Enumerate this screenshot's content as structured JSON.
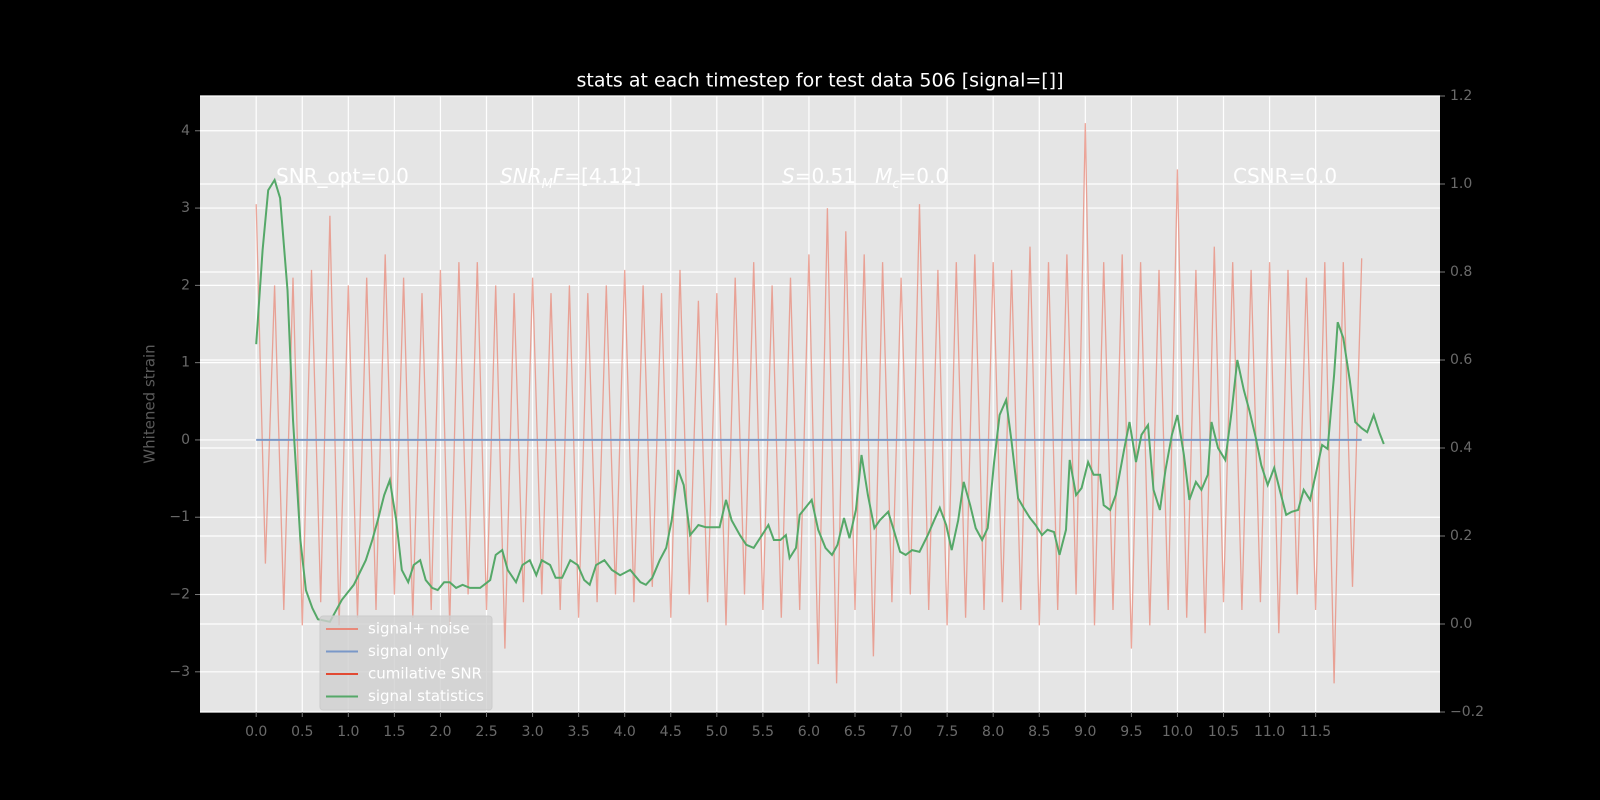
{
  "chart_data": {
    "type": "line",
    "title": "stats at each timestep for test data 506 [signal=[]]",
    "ylabel": "Whitened strain",
    "xlim": [
      -0.61,
      12.85
    ],
    "ylim": [
      -3.52,
      4.45
    ],
    "y2lim": [
      -0.2,
      1.2
    ],
    "xticks": [
      {
        "value": 0.0,
        "label": "0.0"
      },
      0.5,
      {
        "value": 1.0,
        "label": "1.0"
      },
      1.5,
      {
        "value": 2.0,
        "label": "2.0"
      },
      2.5,
      {
        "value": 3.0,
        "label": "3.0"
      },
      3.5,
      {
        "value": 4.0,
        "label": "4.0"
      },
      4.5,
      {
        "value": 5.0,
        "label": "5.0"
      },
      5.5,
      {
        "value": 6.0,
        "label": "6.0"
      },
      6.5,
      {
        "value": 7.0,
        "label": "7.0"
      },
      7.5,
      {
        "value": 8.0,
        "label": "8.0"
      },
      8.5,
      {
        "value": 9.0,
        "label": "9.0"
      },
      9.5,
      {
        "value": 10.0,
        "label": "10.0"
      },
      10.5,
      {
        "value": 11.0,
        "label": "11.0"
      },
      11.5
    ],
    "yticks": [
      {
        "value": -3,
        "label": "−3"
      },
      {
        "value": -2,
        "label": "−2"
      },
      {
        "value": -1,
        "label": "−1"
      },
      0,
      1,
      2,
      3,
      4
    ],
    "y2ticks": [
      {
        "value": -0.2,
        "label": "−0.2"
      },
      {
        "value": 0.0,
        "label": "0.0"
      },
      0.2,
      0.4,
      0.6,
      0.8,
      {
        "value": 1.0,
        "label": "1.0"
      },
      1.2
    ],
    "grid": true,
    "legend_loc": "lower left",
    "annotations": [
      [
        {
          "text": "SNR_opt=0.0"
        }
      ],
      [
        {
          "text": "SNR",
          "italic": true
        },
        {
          "text": "M",
          "italic": true,
          "sub": true
        },
        {
          "text": "F",
          "italic": true
        },
        {
          "text": "=[4.12]"
        }
      ],
      [
        {
          "text": "S",
          "italic": true
        },
        {
          "text": "=0.51   "
        },
        {
          "text": "M",
          "italic": true
        },
        {
          "text": "c",
          "italic": true,
          "sub": true
        },
        {
          "text": "=0.0"
        }
      ],
      [
        {
          "text": "CSNR=0.0"
        }
      ]
    ],
    "series": [
      {
        "name": "signal+ noise",
        "color": "#e8897a",
        "alpha": 0.75,
        "x": [
          0.0,
          0.1,
          0.2,
          0.3,
          0.4,
          0.5,
          0.6,
          0.7,
          0.8,
          0.9,
          1.0,
          1.1,
          1.2,
          1.3,
          1.4,
          1.5,
          1.6,
          1.7,
          1.8,
          1.9,
          2.0,
          2.1,
          2.2,
          2.3,
          2.4,
          2.5,
          2.6,
          2.7,
          2.8,
          2.9,
          3.0,
          3.1,
          3.2,
          3.3,
          3.4,
          3.5,
          3.6,
          3.7,
          3.8,
          3.9,
          4.0,
          4.1,
          4.2,
          4.3,
          4.4,
          4.5,
          4.6,
          4.7,
          4.8,
          4.9,
          5.0,
          5.1,
          5.2,
          5.3,
          5.4,
          5.5,
          5.6,
          5.7,
          5.8,
          5.9,
          6.0,
          6.1,
          6.2,
          6.3,
          6.4,
          6.5,
          6.6,
          6.7,
          6.8,
          6.9,
          7.0,
          7.1,
          7.2,
          7.3,
          7.4,
          7.5,
          7.6,
          7.7,
          7.8,
          7.9,
          8.0,
          8.1,
          8.2,
          8.3,
          8.4,
          8.5,
          8.6,
          8.7,
          8.8,
          8.9,
          9.0,
          9.1,
          9.2,
          9.3,
          9.4,
          9.5,
          9.6,
          9.7,
          9.8,
          9.9,
          10.0,
          10.1,
          10.2,
          10.3,
          10.4,
          10.5,
          10.6,
          10.7,
          10.8,
          10.9,
          11.0,
          11.1,
          11.2,
          11.3,
          11.4,
          11.5,
          11.6,
          11.7,
          11.8,
          11.9,
          12.0
        ],
        "values": [
          3.05,
          -1.6,
          2.0,
          -2.2,
          2.1,
          -2.4,
          2.2,
          -2.1,
          2.9,
          -2.4,
          2.0,
          -2.3,
          2.1,
          -2.2,
          2.4,
          -2.0,
          2.1,
          -2.3,
          1.9,
          -2.2,
          2.2,
          -2.4,
          2.3,
          -2.0,
          2.3,
          -2.2,
          2.0,
          -2.7,
          1.9,
          -2.1,
          2.1,
          -2.0,
          1.9,
          -2.2,
          2.0,
          -2.3,
          1.9,
          -2.1,
          2.0,
          -2.0,
          2.2,
          -2.1,
          2.0,
          -1.9,
          1.9,
          -2.3,
          2.2,
          -2.0,
          1.8,
          -2.1,
          1.9,
          -2.4,
          2.1,
          -2.0,
          2.3,
          -2.2,
          2.0,
          -2.3,
          2.1,
          -2.2,
          2.4,
          -2.9,
          3.0,
          -3.15,
          2.7,
          -2.2,
          2.4,
          -2.8,
          2.3,
          -2.1,
          2.1,
          -2.0,
          3.05,
          -2.2,
          2.2,
          -2.4,
          2.3,
          -2.3,
          2.4,
          -2.2,
          2.3,
          -2.1,
          2.2,
          -2.2,
          2.5,
          -2.4,
          2.3,
          -2.2,
          2.4,
          -2.0,
          4.1,
          -2.4,
          2.3,
          -2.2,
          2.4,
          -2.7,
          2.3,
          -2.4,
          2.2,
          -2.2,
          3.5,
          -2.3,
          2.2,
          -2.5,
          2.5,
          -2.1,
          2.3,
          -2.2,
          2.2,
          -2.1,
          2.3,
          -2.5,
          2.2,
          -2.0,
          2.1,
          -2.2,
          2.3,
          -3.15,
          2.3,
          -1.9,
          2.35
        ]
      },
      {
        "name": "signal only",
        "color": "#7a98c8",
        "x": [
          0.0,
          12.0
        ],
        "values": [
          0,
          0
        ]
      },
      {
        "name": "cumilative SNR",
        "color": "#e24a33",
        "x": [],
        "values": []
      },
      {
        "name": "signal statistics",
        "color": "#55a868",
        "axis": "y2",
        "x": [
          0.0,
          0.07,
          0.13,
          0.2,
          0.26,
          0.34,
          0.4,
          0.48,
          0.54,
          0.61,
          0.67,
          0.8,
          0.93,
          1.06,
          1.19,
          1.26,
          1.32,
          1.39,
          1.45,
          1.52,
          1.58,
          1.65,
          1.71,
          1.78,
          1.84,
          1.91,
          1.97,
          2.04,
          2.1,
          2.17,
          2.24,
          2.32,
          2.43,
          2.54,
          2.6,
          2.67,
          2.73,
          2.82,
          2.89,
          2.97,
          3.04,
          3.1,
          3.19,
          3.25,
          3.32,
          3.41,
          3.49,
          3.56,
          3.62,
          3.69,
          3.78,
          3.86,
          3.95,
          4.06,
          4.17,
          4.23,
          4.3,
          4.38,
          4.45,
          4.51,
          4.58,
          4.64,
          4.71,
          4.8,
          4.88,
          4.97,
          5.03,
          5.1,
          5.16,
          5.25,
          5.32,
          5.4,
          5.49,
          5.56,
          5.62,
          5.69,
          5.75,
          5.79,
          5.86,
          5.9,
          6.03,
          6.1,
          6.18,
          6.25,
          6.31,
          6.38,
          6.44,
          6.51,
          6.57,
          6.64,
          6.71,
          6.77,
          6.86,
          6.92,
          6.99,
          7.05,
          7.12,
          7.2,
          7.29,
          7.36,
          7.42,
          7.49,
          7.55,
          7.62,
          7.68,
          7.75,
          7.81,
          7.88,
          7.94,
          8.01,
          8.07,
          8.14,
          8.2,
          8.27,
          8.33,
          8.4,
          8.46,
          8.53,
          8.59,
          8.66,
          8.72,
          8.79,
          8.83,
          8.9,
          8.96,
          9.03,
          9.09,
          9.16,
          9.2,
          9.27,
          9.33,
          9.42,
          9.48,
          9.55,
          9.61,
          9.68,
          9.74,
          9.81,
          9.87,
          9.94,
          10.0,
          10.07,
          10.13,
          10.2,
          10.26,
          10.33,
          10.37,
          10.44,
          10.52,
          10.59,
          10.65,
          10.72,
          10.78,
          10.85,
          10.91,
          10.98,
          11.05,
          11.11,
          11.18,
          11.24,
          11.31,
          11.37,
          11.44,
          11.5,
          11.57,
          11.63,
          11.7,
          11.74,
          11.8,
          11.87,
          11.93,
          12.0,
          12.06,
          12.13,
          12.19,
          12.24
        ],
        "values": [
          0.636,
          0.85,
          0.986,
          1.009,
          0.968,
          0.759,
          0.464,
          0.191,
          0.077,
          0.036,
          0.011,
          0.005,
          0.055,
          0.089,
          0.145,
          0.191,
          0.236,
          0.293,
          0.327,
          0.236,
          0.123,
          0.095,
          0.134,
          0.145,
          0.1,
          0.082,
          0.077,
          0.095,
          0.095,
          0.082,
          0.089,
          0.082,
          0.082,
          0.1,
          0.157,
          0.168,
          0.123,
          0.095,
          0.134,
          0.145,
          0.111,
          0.145,
          0.134,
          0.105,
          0.105,
          0.145,
          0.134,
          0.1,
          0.089,
          0.134,
          0.145,
          0.123,
          0.111,
          0.123,
          0.095,
          0.089,
          0.105,
          0.145,
          0.173,
          0.236,
          0.35,
          0.316,
          0.202,
          0.225,
          0.22,
          0.22,
          0.22,
          0.282,
          0.236,
          0.202,
          0.18,
          0.173,
          0.202,
          0.225,
          0.191,
          0.191,
          0.202,
          0.15,
          0.173,
          0.248,
          0.282,
          0.214,
          0.173,
          0.157,
          0.18,
          0.241,
          0.195,
          0.259,
          0.384,
          0.293,
          0.218,
          0.236,
          0.255,
          0.214,
          0.164,
          0.157,
          0.168,
          0.164,
          0.202,
          0.236,
          0.264,
          0.225,
          0.168,
          0.236,
          0.323,
          0.27,
          0.218,
          0.191,
          0.218,
          0.368,
          0.475,
          0.509,
          0.414,
          0.286,
          0.264,
          0.241,
          0.225,
          0.202,
          0.214,
          0.209,
          0.157,
          0.214,
          0.373,
          0.293,
          0.309,
          0.368,
          0.339,
          0.339,
          0.27,
          0.259,
          0.293,
          0.395,
          0.459,
          0.368,
          0.43,
          0.452,
          0.305,
          0.259,
          0.35,
          0.43,
          0.475,
          0.384,
          0.282,
          0.323,
          0.305,
          0.339,
          0.459,
          0.4,
          0.373,
          0.486,
          0.6,
          0.532,
          0.486,
          0.423,
          0.361,
          0.316,
          0.355,
          0.305,
          0.248,
          0.255,
          0.259,
          0.305,
          0.282,
          0.339,
          0.407,
          0.398,
          0.566,
          0.686,
          0.65,
          0.555,
          0.459,
          0.445,
          0.436,
          0.475,
          0.436,
          0.409
        ]
      }
    ]
  }
}
